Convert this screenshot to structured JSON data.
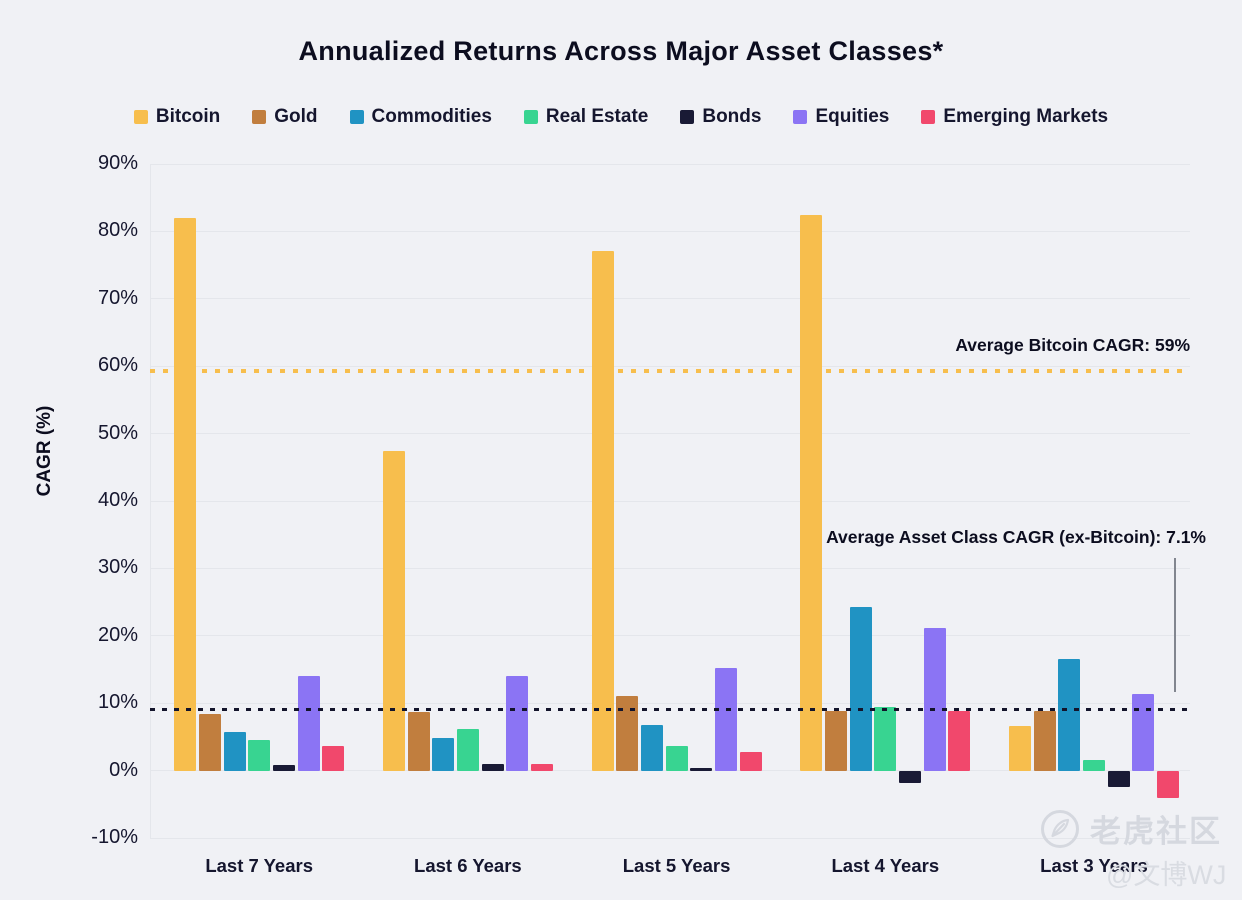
{
  "watermark": {
    "brand": "老虎社区",
    "handle": "@文博WJ",
    "icon": "feather-quill-icon"
  },
  "chart_data": {
    "type": "bar",
    "title": "Annualized Returns Across Major Asset Classes*",
    "xlabel": "",
    "ylabel": "CAGR (%)",
    "ylim": [
      -10,
      90
    ],
    "yticks": [
      90,
      80,
      70,
      60,
      50,
      40,
      30,
      20,
      10,
      0,
      -10
    ],
    "ytick_suffix": "%",
    "grid": true,
    "legend_position": "top",
    "background_color": "#F0F1F5",
    "categories": [
      "Last 7 Years",
      "Last 6 Years",
      "Last 5 Years",
      "Last 4 Years",
      "Last 3 Years"
    ],
    "series": [
      {
        "name": "Bitcoin",
        "color": "#F7BE4D",
        "values": [
          82.0,
          47.4,
          77.1,
          82.4,
          6.6
        ]
      },
      {
        "name": "Gold",
        "color": "#C17E3E",
        "values": [
          8.4,
          8.7,
          11.1,
          8.8,
          8.8
        ]
      },
      {
        "name": "Commodities",
        "color": "#2093C3",
        "values": [
          5.8,
          4.8,
          6.8,
          24.2,
          16.5
        ]
      },
      {
        "name": "Real Estate",
        "color": "#38D491",
        "values": [
          4.5,
          6.2,
          3.6,
          9.5,
          1.6
        ]
      },
      {
        "name": "Bonds",
        "color": "#191A35",
        "values": [
          0.9,
          1.0,
          0.4,
          -1.8,
          -2.5
        ]
      },
      {
        "name": "Equities",
        "color": "#8B74F4",
        "values": [
          14.0,
          14.0,
          15.2,
          21.2,
          11.4
        ]
      },
      {
        "name": "Emerging Markets",
        "color": "#F1486C",
        "values": [
          3.7,
          1.0,
          2.8,
          8.9,
          -4.0
        ]
      }
    ],
    "reference_lines": [
      {
        "label": "Average Bitcoin CAGR: 59%",
        "value": 59,
        "line_y": 59.3,
        "color": "#F7BE4D",
        "style": "dotted"
      },
      {
        "label": "Average Asset Class CAGR (ex-Bitcoin): 7.1%",
        "value": 7.1,
        "line_y": 9.05,
        "color": "#13142B",
        "style": "dotted"
      }
    ]
  }
}
